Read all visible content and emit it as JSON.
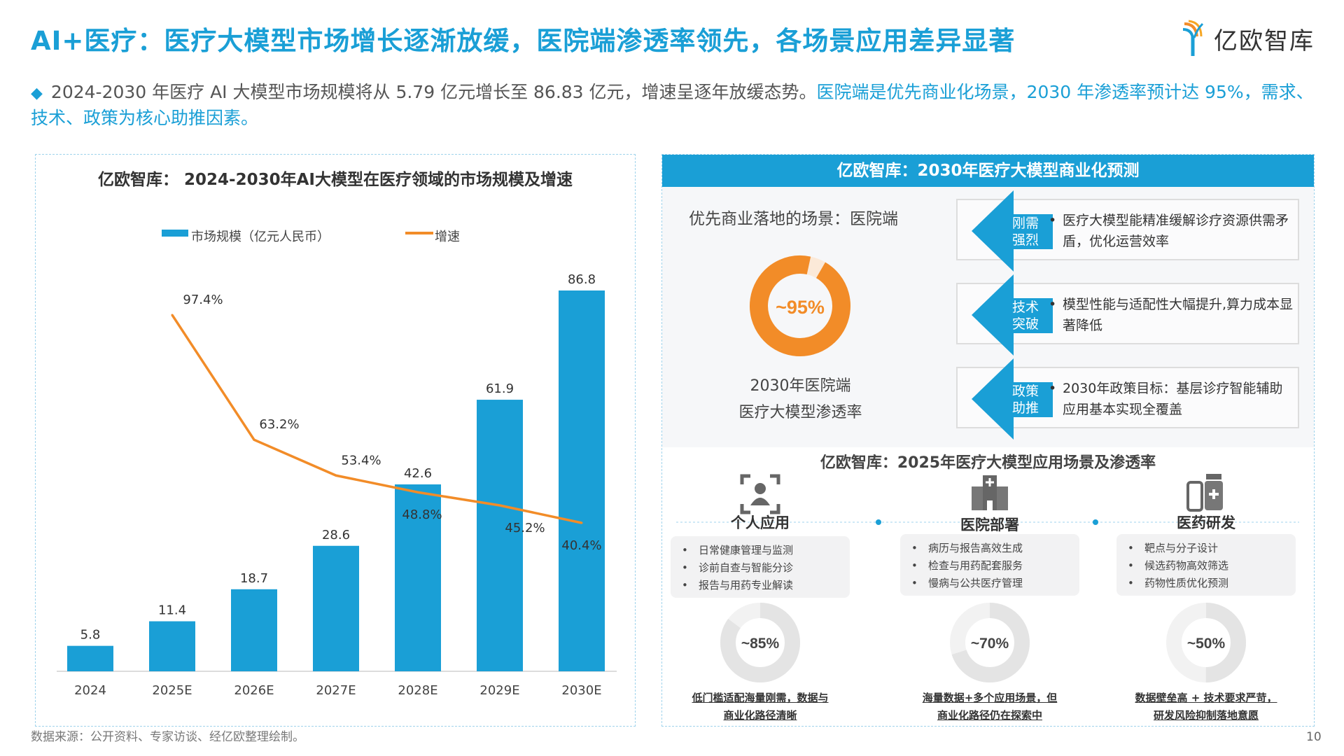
{
  "title": "AI+医疗：医疗大模型市场增长逐渐放缓，医院端渗透率领先，各场景应用差异显著",
  "logo": {
    "text": "亿欧智库",
    "icon": "yiou-logo-icon"
  },
  "summary": {
    "part1": "2024-2030 年医疗 AI 大模型市场规模将从 5.79 亿元增长至 86.83 亿元，增速呈逐年放缓态势。",
    "part2": "医院端是优先商业化场景，2030 年渗透率预计达 95%，需求、技术、政策为核心助推因素。"
  },
  "chart_data": {
    "type": "bar+line",
    "title": "亿欧智库： 2024-2030年AI大模型在医疗领域的市场规模及增速",
    "categories": [
      "2024",
      "2025E",
      "2026E",
      "2027E",
      "2028E",
      "2029E",
      "2030E"
    ],
    "series": [
      {
        "name": "市场规模（亿元人民币）",
        "type": "bar",
        "color": "#1a9fd6",
        "values": [
          5.8,
          11.4,
          18.7,
          28.6,
          42.6,
          61.9,
          86.8
        ],
        "labels": [
          "5.8",
          "11.4",
          "18.7",
          "28.6",
          "42.6",
          "61.9",
          "86.8"
        ]
      },
      {
        "name": "增速",
        "type": "line",
        "color": "#f28c28",
        "values": [
          null,
          97.4,
          63.2,
          53.4,
          48.8,
          45.2,
          40.4
        ],
        "labels": [
          "",
          "97.4%",
          "63.2%",
          "53.4%",
          "48.8%",
          "45.2%",
          "40.4%"
        ]
      }
    ],
    "legend": "top-center",
    "grid": false
  },
  "source": "数据来源：公开资料、专家访谈、经亿欧整理绘制。",
  "right": {
    "header": "亿欧智库：2030年医疗大模型商业化预测",
    "scene": "优先商业落地的场景：医院端",
    "donut": {
      "label": "~95%",
      "value": 95,
      "color": "#f28c28",
      "rest_color": "#fbe9d8"
    },
    "caption1": "2030年医院端",
    "caption2": "医疗大模型渗透率",
    "cards": [
      {
        "tag1": "刚需",
        "tag2": "强烈",
        "text": "医疗大模型能精准缓解诊疗资源供需矛盾，优化运营效率"
      },
      {
        "tag1": "技术",
        "tag2": "突破",
        "text": "模型性能与适配性大幅提升,算力成本显著降低"
      },
      {
        "tag1": "政策",
        "tag2": "助推",
        "text": "2030年政策目标：基层诊疗智能辅助应用基本实现全覆盖"
      }
    ],
    "section_title": "亿欧智库：2025年医疗大模型应用场景及渗透率",
    "scenarios": [
      {
        "label": "个人应用",
        "icon": "person-scan-icon",
        "items": [
          "日常健康管理与监测",
          "诊前自查与智能分诊",
          "报告与用药专业解读"
        ],
        "rate": "~85%",
        "value": 85,
        "cap1": "低门槛适配海量刚需，数据与",
        "cap2": "商业化路径清晰"
      },
      {
        "label": "医院部署",
        "icon": "hospital-icon",
        "items": [
          "病历与报告高效生成",
          "检查与用药配套服务",
          "慢病与公共医疗管理"
        ],
        "rate": "~70%",
        "value": 70,
        "cap1": "海量数据+多个应用场景，但",
        "cap2": "商业化路径仍在探索中"
      },
      {
        "label": "医药研发",
        "icon": "medicine-icon",
        "items": [
          "靶点与分子设计",
          "候选药物高效筛选",
          "药物性质优化预测"
        ],
        "rate": "~50%",
        "value": 50,
        "cap1": "数据壁垒高 + 技术要求严苛，",
        "cap2": "研发风险抑制落地意愿"
      }
    ]
  },
  "page_number": "10",
  "colors": {
    "brand": "#1a9fd6",
    "accent": "#f28c28"
  }
}
